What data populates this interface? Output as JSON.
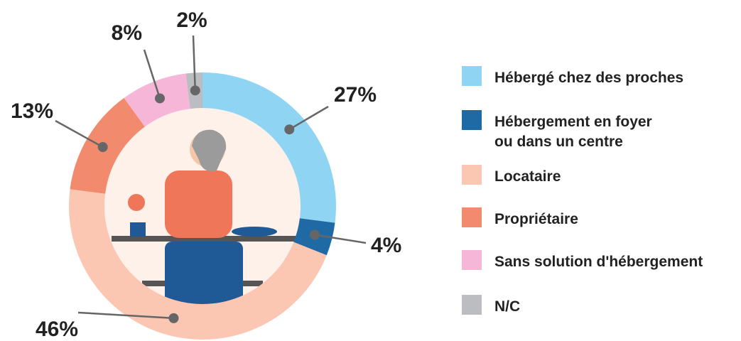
{
  "chart_data": {
    "type": "donut",
    "categories": [
      "Hébergé chez des proches",
      "Hébergement en foyer\nou dans un centre",
      "Locataire",
      "Propriétaire",
      "Sans solution d'hébergement",
      "N/C"
    ],
    "values": [
      27,
      4,
      46,
      13,
      8,
      2
    ],
    "value_labels": [
      "27%",
      "4%",
      "46%",
      "13%",
      "8%",
      "2%"
    ],
    "colors": [
      "#8fd5f3",
      "#1f6aa5",
      "#fbc7b2",
      "#f28b6e",
      "#f5b6d8",
      "#bcbdc0"
    ],
    "legend": "right"
  }
}
